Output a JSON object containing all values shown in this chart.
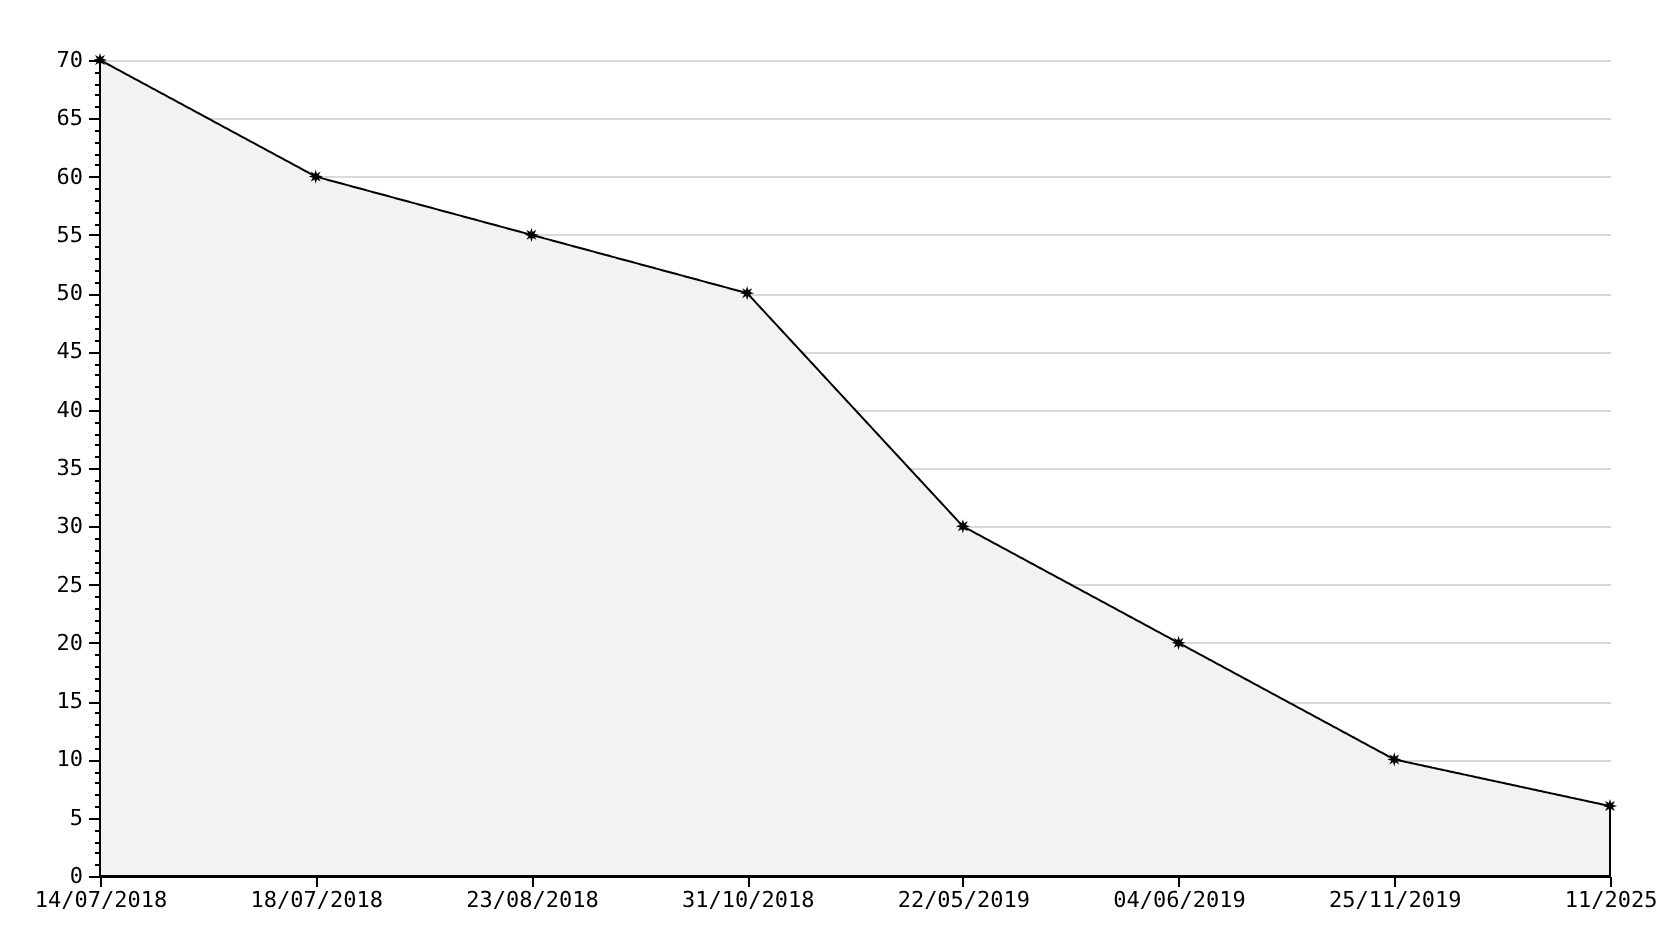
{
  "chart_data": {
    "type": "area",
    "categories": [
      "14/07/2018",
      "18/07/2018",
      "23/08/2018",
      "31/10/2018",
      "22/05/2019",
      "04/06/2019",
      "25/11/2019",
      "11/2025"
    ],
    "series": [
      {
        "color": "#f2f2f2",
        "values": [
          70,
          60,
          55,
          50,
          30,
          20,
          10,
          6
        ]
      }
    ],
    "ylim": [
      0,
      70
    ],
    "yticks": [
      0,
      {
        "value": 1,
        "label": null
      },
      {
        "value": 2,
        "label": null
      },
      {
        "value": 3,
        "label": null
      },
      {
        "value": 4,
        "label": null
      },
      5,
      {
        "value": 6,
        "label": null
      },
      {
        "value": 7,
        "label": null
      },
      {
        "value": 8,
        "label": null
      },
      {
        "value": 9,
        "label": null
      },
      10,
      {
        "value": 11,
        "label": null
      },
      {
        "value": 12,
        "label": null
      },
      {
        "value": 13,
        "label": null
      },
      {
        "value": 14,
        "label": null
      },
      15,
      {
        "value": 16,
        "label": null
      },
      {
        "value": 17,
        "label": null
      },
      {
        "value": 18,
        "label": null
      },
      {
        "value": 19,
        "label": null
      },
      20,
      {
        "value": 21,
        "label": null
      },
      {
        "value": 22,
        "label": null
      },
      {
        "value": 23,
        "label": null
      },
      {
        "value": 24,
        "label": null
      },
      25,
      {
        "value": 26,
        "label": null
      },
      {
        "value": 27,
        "label": null
      },
      {
        "value": 28,
        "label": null
      },
      {
        "value": 29,
        "label": null
      },
      30,
      {
        "value": 31,
        "label": null
      },
      {
        "value": 32,
        "label": null
      },
      {
        "value": 33,
        "label": null
      },
      {
        "value": 34,
        "label": null
      },
      35,
      {
        "value": 36,
        "label": null
      },
      {
        "value": 37,
        "label": null
      },
      {
        "value": 38,
        "label": null
      },
      {
        "value": 39,
        "label": null
      },
      40,
      {
        "value": 41,
        "label": null
      },
      {
        "value": 42,
        "label": null
      },
      {
        "value": 43,
        "label": null
      },
      {
        "value": 44,
        "label": null
      },
      45,
      {
        "value": 46,
        "label": null
      },
      {
        "value": 47,
        "label": null
      },
      {
        "value": 48,
        "label": null
      },
      {
        "value": 49,
        "label": null
      },
      50,
      {
        "value": 51,
        "label": null
      },
      {
        "value": 52,
        "label": null
      },
      {
        "value": 53,
        "label": null
      },
      {
        "value": 54,
        "label": null
      },
      55,
      {
        "value": 56,
        "label": null
      },
      {
        "value": 57,
        "label": null
      },
      {
        "value": 58,
        "label": null
      },
      {
        "value": 59,
        "label": null
      },
      60,
      {
        "value": 61,
        "label": null
      },
      {
        "value": 62,
        "label": null
      },
      {
        "value": 63,
        "label": null
      },
      {
        "value": 64,
        "label": null
      },
      65,
      {
        "value": 66,
        "label": null
      },
      {
        "value": 67,
        "label": null
      },
      {
        "value": 68,
        "label": null
      },
      {
        "value": 69,
        "label": null
      },
      70
    ],
    "grid": "y",
    "marker": "star",
    "line_style": "solid"
  }
}
